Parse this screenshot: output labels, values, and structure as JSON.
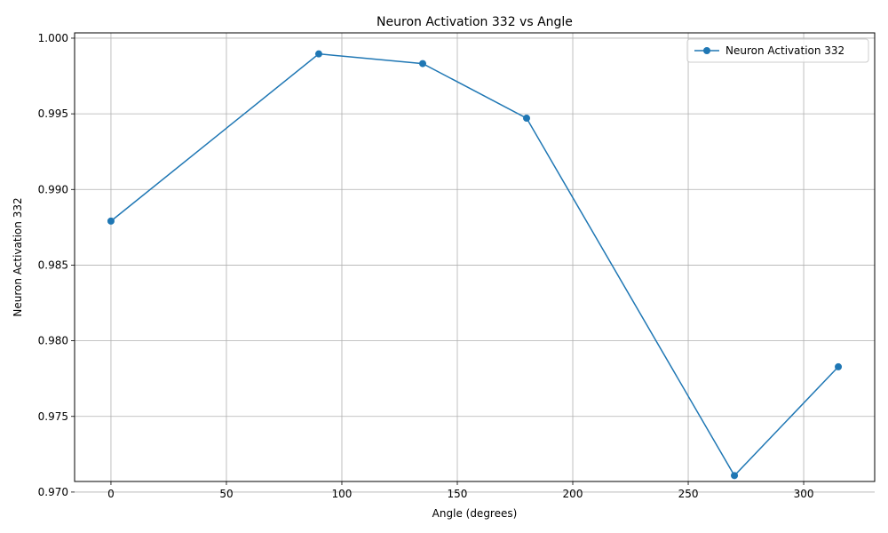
{
  "chart_data": {
    "type": "line",
    "title": "Neuron Activation 332 vs Angle",
    "xlabel": "Angle (degrees)",
    "ylabel": "Neuron Activation 332",
    "x": [
      0,
      90,
      135,
      180,
      270,
      315
    ],
    "series": [
      {
        "name": "Neuron Activation 332",
        "values": [
          0.98791,
          0.99896,
          0.99832,
          0.99471,
          0.97109,
          0.97828
        ],
        "color": "#1f77b4",
        "marker": "circle"
      }
    ],
    "xlim": [
      -15.75,
      330.75
    ],
    "ylim": [
      0.9707,
      1.00035
    ],
    "xticks": [
      0,
      50,
      100,
      150,
      200,
      250,
      300
    ],
    "xtick_labels": [
      "0",
      "50",
      "100",
      "150",
      "200",
      "250",
      "300"
    ],
    "yticks": [
      0.97,
      0.975,
      0.98,
      0.985,
      0.99,
      0.995,
      1.0
    ],
    "ytick_labels": [
      "0.970",
      "0.975",
      "0.980",
      "0.985",
      "0.990",
      "0.995",
      "1.000"
    ],
    "grid": true,
    "legend_position": "top-right"
  }
}
